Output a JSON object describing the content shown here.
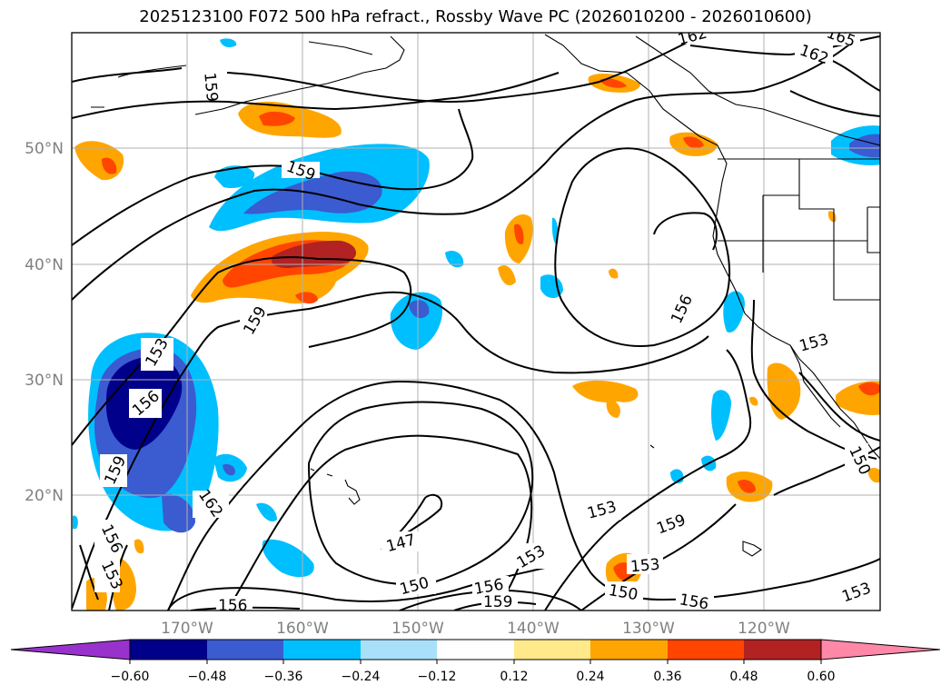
{
  "title": "2025123100 F072 500 hPa refract., Rossby Wave PC (2026010200 - 2026010600)",
  "map": {
    "lon_labels": [
      "170°W",
      "160°W",
      "150°W",
      "140°W",
      "130°W",
      "120°W"
    ],
    "lat_labels": [
      "50°N",
      "40°N",
      "30°N",
      "20°N"
    ],
    "contour_labels": [
      "162",
      "165",
      "162",
      "159",
      "159",
      "159",
      "156",
      "153",
      "153",
      "156",
      "162",
      "159",
      "156",
      "153",
      "147",
      "150",
      "153",
      "156",
      "159",
      "156",
      "153",
      "153",
      "159",
      "156",
      "150",
      "150",
      "153"
    ]
  },
  "colorbar": {
    "tick_labels": [
      "−0.60",
      "−0.48",
      "−0.36",
      "−0.24",
      "−0.12",
      "0.12",
      "0.24",
      "0.36",
      "0.48",
      "0.60"
    ],
    "colors": [
      "#9932cc",
      "#00008b",
      "#3b5bd1",
      "#00bfff",
      "#a8e0fa",
      "#ffffff",
      "#ffe98a",
      "#ffa500",
      "#ff4500",
      "#b22222",
      "#ff88a8"
    ]
  }
}
